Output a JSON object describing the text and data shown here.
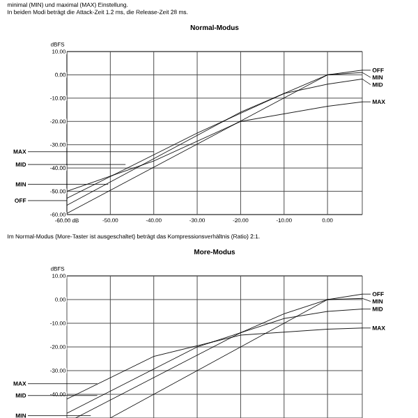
{
  "chart_data": [
    {
      "type": "line",
      "title": "Normal-Modus",
      "ylabel": "dBFS",
      "annotations": [
        "minimal (MIN) und maximal (MAX) Einstellung.",
        "In beiden Modi beträgt die Attack-Zeit 1.2 ms, die  Release-Zeit 28 ms.",
        {
          "text": "MAX",
          "x": -40,
          "y": -33
        },
        {
          "text": "MID",
          "x": -46.5,
          "y": -38.5
        },
        {
          "text": "MIN",
          "x": -50.5,
          "y": -47
        },
        {
          "text": "OFF",
          "x": -60,
          "y": -54
        }
      ],
      "xlim": [
        -60,
        8
      ],
      "ylim": [
        -60,
        10
      ],
      "xticks": [
        {
          "value": -60,
          "label": "-60.00 dB"
        },
        {
          "value": -50,
          "label": "-50.00"
        },
        {
          "value": -40,
          "label": "-40.00"
        },
        {
          "value": -30,
          "label": "-30.00"
        },
        {
          "value": -20,
          "label": "-20.00"
        },
        {
          "value": -10,
          "label": "-10.00"
        },
        {
          "value": 0,
          "label": "0.00"
        }
      ],
      "yticks": [
        {
          "value": 10,
          "label": "10.00"
        },
        {
          "value": 0,
          "label": "0.00"
        },
        {
          "value": -10,
          "label": "-10.00"
        },
        {
          "value": -20,
          "label": "-20.00"
        },
        {
          "value": -30,
          "label": "-30.00"
        },
        {
          "value": -40,
          "label": "-40.00"
        },
        {
          "value": -50,
          "label": "-50.00"
        },
        {
          "value": -60,
          "label": "-60.00"
        }
      ],
      "grid": true,
      "legend": "right",
      "series": [
        {
          "name": "OFF",
          "color": "#000000",
          "x": [
            -60,
            0,
            8
          ],
          "values": [
            -59.5,
            0,
            2
          ]
        },
        {
          "name": "MIN",
          "color": "#000000",
          "x": [
            -60,
            -20,
            0,
            8
          ],
          "values": [
            -56,
            -16,
            0,
            1
          ]
        },
        {
          "name": "MID",
          "color": "#000000",
          "x": [
            -60,
            -30,
            -10,
            0,
            8
          ],
          "values": [
            -53,
            -25,
            -8,
            -4,
            -1.8
          ]
        },
        {
          "name": "MAX",
          "color": "#000000",
          "x": [
            -60,
            -40,
            -20,
            0,
            8
          ],
          "values": [
            -50,
            -37,
            -20,
            -13.5,
            -11.6
          ]
        }
      ]
    },
    {
      "type": "line",
      "title": "More-Modus",
      "ylabel": "dBFS",
      "annotations": [
        "Im Normal-Modus (More-Taster ist ausgeschaltet) beträgt das Kompressionsverhältnis (Ratio) 2:1.",
        {
          "text": "MAX",
          "x": -53,
          "y": -35.5
        },
        {
          "text": "MID",
          "x": -53,
          "y": -40.5
        },
        {
          "text": "MIN",
          "x": -54.5,
          "y": -49
        }
      ],
      "xlim": [
        -60,
        8
      ],
      "ylim": [
        -50,
        10
      ],
      "tick_labels": "y",
      "xticks": [
        {
          "value": -50,
          "label": null
        },
        {
          "value": -40,
          "label": null
        },
        {
          "value": -30,
          "label": null
        },
        {
          "value": -20,
          "label": null
        },
        {
          "value": -10,
          "label": null
        },
        {
          "value": 0,
          "label": null
        }
      ],
      "yticks": [
        {
          "value": 10,
          "label": "10.00"
        },
        {
          "value": 0,
          "label": "0.00"
        },
        {
          "value": -10,
          "label": "-10.00"
        },
        {
          "value": -20,
          "label": "-20.00"
        },
        {
          "value": -30,
          "label": "-30.00"
        },
        {
          "value": -40,
          "label": "-40.00"
        }
      ],
      "grid": true,
      "legend": "right",
      "series": [
        {
          "name": "OFF",
          "color": "#000000",
          "x": [
            -50,
            0,
            8
          ],
          "values": [
            -50,
            0,
            2.3
          ]
        },
        {
          "name": "MIN",
          "color": "#000000",
          "x": [
            -58,
            -20,
            -10,
            0,
            8
          ],
          "values": [
            -50,
            -14,
            -6,
            0,
            0.5
          ]
        },
        {
          "name": "MID",
          "color": "#000000",
          "x": [
            -60,
            -30,
            -20,
            -10,
            0,
            8
          ],
          "values": [
            -48,
            -20,
            -14,
            -8,
            -5,
            -4
          ]
        },
        {
          "name": "MAX",
          "color": "#000000",
          "x": [
            -60,
            -40,
            -30,
            -20,
            0,
            8
          ],
          "values": [
            -42,
            -24,
            -19.5,
            -15,
            -12.5,
            -12
          ]
        }
      ]
    }
  ]
}
